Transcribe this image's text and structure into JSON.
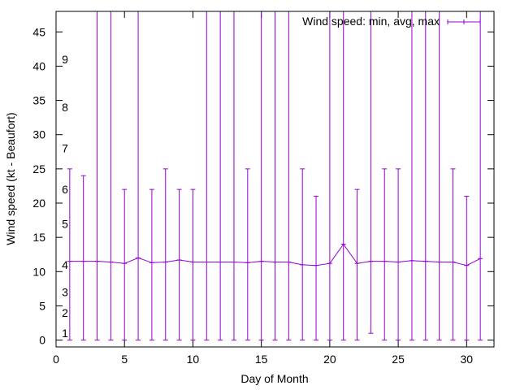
{
  "chart_data": {
    "type": "line",
    "title": "",
    "xlabel": "Day of Month",
    "ylabel": "Wind speed (kt - Beaufort)",
    "xlim": [
      0,
      32
    ],
    "ylim": [
      -1,
      48
    ],
    "xticks": [
      0,
      5,
      10,
      15,
      20,
      25,
      30
    ],
    "yticks": [
      0,
      5,
      10,
      15,
      20,
      25,
      30,
      35,
      40,
      45
    ],
    "beaufort_labels": [
      {
        "label": "1",
        "y": 1
      },
      {
        "label": "2",
        "y": 4
      },
      {
        "label": "3",
        "y": 7
      },
      {
        "label": "4",
        "y": 11
      },
      {
        "label": "5",
        "y": 17
      },
      {
        "label": "6",
        "y": 22
      },
      {
        "label": "7",
        "y": 28
      },
      {
        "label": "8",
        "y": 34
      },
      {
        "label": "9",
        "y": 41
      }
    ],
    "legend": {
      "label": "Wind speed: min, avg, max",
      "position": "top-right"
    },
    "color": "#9400d3",
    "series": [
      {
        "name": "Wind speed: min, avg, max",
        "x": [
          1,
          2,
          3,
          4,
          5,
          6,
          7,
          8,
          9,
          10,
          11,
          12,
          13,
          14,
          15,
          16,
          17,
          18,
          19,
          20,
          21,
          22,
          23,
          24,
          25,
          26,
          27,
          28,
          29,
          30,
          31
        ],
        "avg": [
          11.5,
          11.5,
          11.5,
          11.4,
          11.2,
          12.0,
          11.3,
          11.4,
          11.7,
          11.4,
          11.4,
          11.4,
          11.4,
          11.3,
          11.5,
          11.4,
          11.4,
          11.0,
          10.9,
          11.2,
          14.0,
          11.2,
          11.5,
          11.5,
          11.4,
          11.6,
          11.5,
          11.4,
          11.4,
          10.9,
          11.9
        ],
        "min": [
          0,
          0,
          0,
          0,
          0,
          0,
          0,
          0,
          0,
          0,
          0,
          0,
          0,
          0,
          0,
          0,
          0,
          0,
          0,
          0,
          0,
          0,
          1,
          0,
          0,
          0,
          0,
          0,
          0,
          0,
          0
        ],
        "max": [
          25,
          24,
          48,
          48,
          22,
          48,
          22,
          25,
          22,
          22,
          48,
          48,
          48,
          25,
          48,
          48,
          48,
          25,
          21,
          48,
          48,
          22,
          48,
          25,
          25,
          48,
          48,
          48,
          25,
          21,
          48
        ]
      }
    ]
  }
}
